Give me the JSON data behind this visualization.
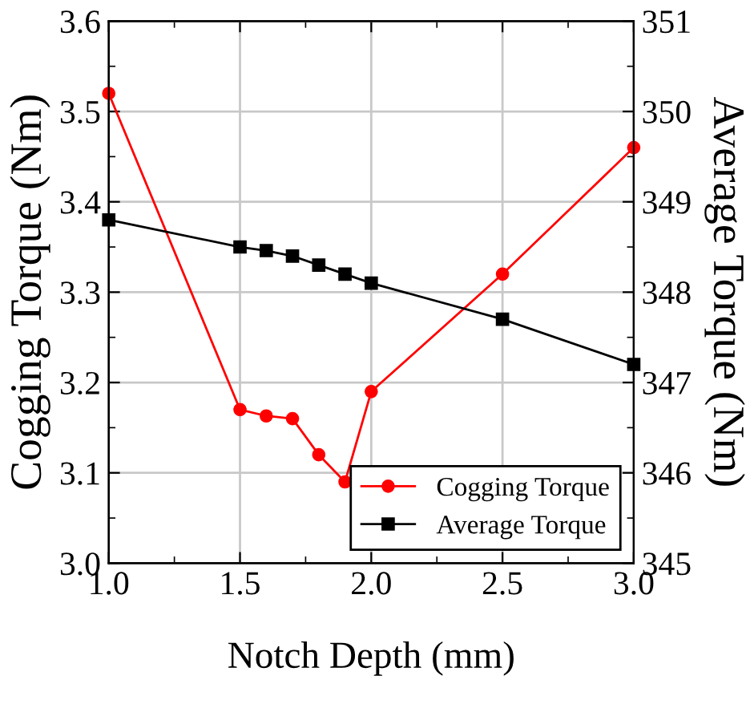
{
  "chart_data": {
    "type": "line",
    "xlabel": "Notch Depth (mm)",
    "ylabel": "Cogging Torque (Nm)",
    "y2label": "Average Torque (Nm)",
    "x": [
      1.0,
      1.5,
      1.6,
      1.7,
      1.8,
      1.9,
      2.0,
      2.5,
      3.0
    ],
    "series": [
      {
        "name": "Cogging Torque",
        "color": "#ff0000",
        "marker": "circle",
        "values": [
          3.52,
          3.17,
          3.163,
          3.16,
          3.12,
          3.09,
          3.19,
          3.32,
          3.46
        ]
      },
      {
        "name": "Average Torque",
        "color": "#000000",
        "marker": "square",
        "axis": "y2",
        "values": [
          348.8,
          348.5,
          348.46,
          348.4,
          348.3,
          348.2,
          348.1,
          347.7,
          347.2
        ]
      }
    ],
    "xlim": [
      1.0,
      3.0
    ],
    "xticks": [
      {
        "value": 1.0,
        "label": "1.0"
      },
      1.5,
      {
        "value": 2.0,
        "label": "2.0"
      },
      2.5,
      {
        "value": 3.0,
        "label": "3.0"
      }
    ],
    "ylim": [
      3.0,
      3.6
    ],
    "yticks": [
      {
        "value": 3.0,
        "label": "3.0"
      },
      3.1,
      3.2,
      3.3,
      3.4,
      3.5,
      3.6
    ],
    "y2lim": [
      345,
      351
    ],
    "y2ticks": [
      345,
      346,
      347,
      348,
      349,
      350,
      351
    ],
    "grid": true,
    "legend": "bottom right"
  }
}
